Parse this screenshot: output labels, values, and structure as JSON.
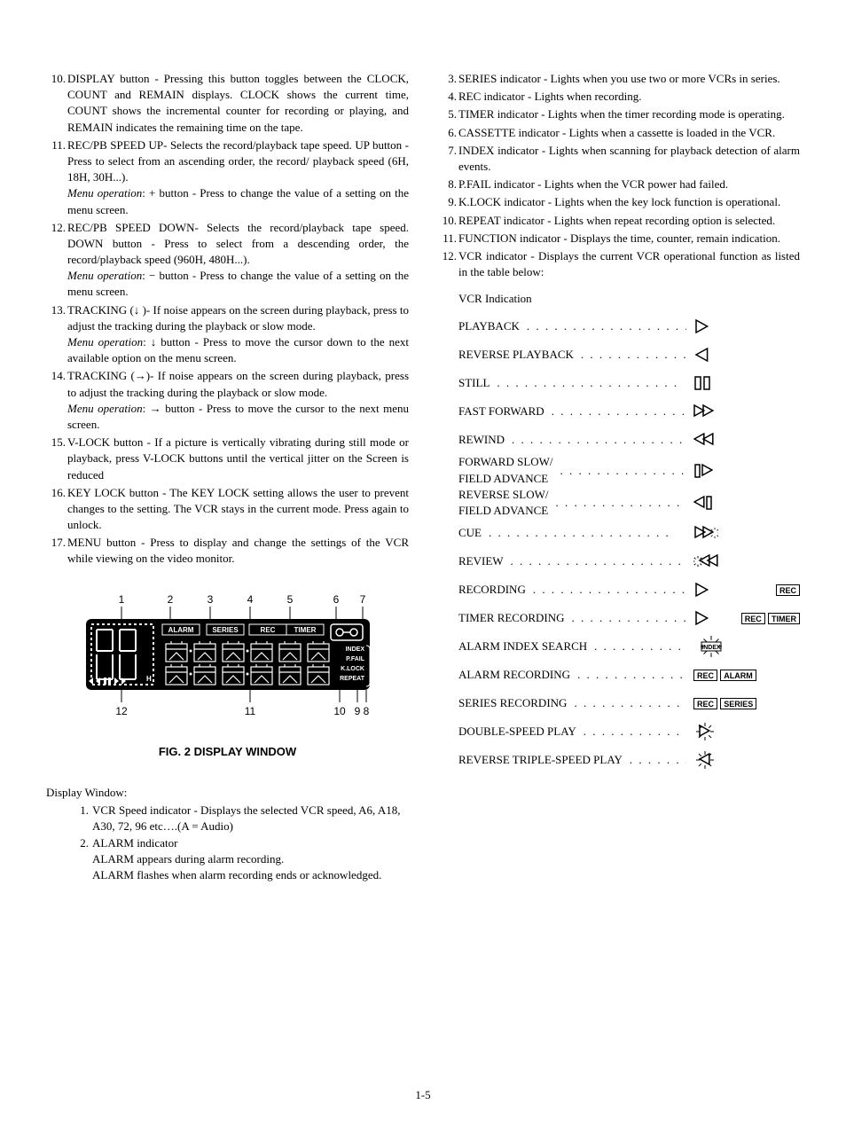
{
  "left": {
    "items": [
      {
        "n": "10.",
        "text": "DISPLAY button - Pressing this button toggles between the CLOCK, COUNT and REMAIN displays. CLOCK shows the current time, COUNT shows the incremental counter for recording or playing, and REMAIN indicates the remaining time on the tape."
      },
      {
        "n": "11.",
        "text": "REC/PB SPEED UP- Selects the record/playback tape speed. UP button - Press to select from an ascending order, the record/ playback speed (6H, 18H, 30H...).",
        "menu": "Menu operation:  + button -  Press to change the value of a setting on the menu screen."
      },
      {
        "n": "12.",
        "text": "REC/PB SPEED DOWN- Selects the record/playback tape speed. DOWN button - Press to select from a descending order, the record/playback speed (960H, 480H...).",
        "menu": "Menu operation:  − button -  Press to change the value of a setting on the menu screen."
      },
      {
        "n": "13.",
        "text": "TRACKING (↓ )- If noise appears on the screen during playback, press to adjust the tracking during the playback or slow mode.",
        "menu": "Menu operation: ↓ button - Press to move the cursor down to the next available option on the menu screen."
      },
      {
        "n": "14.",
        "text": "TRACKING (→)- If noise appears on the screen during playback, press to adjust the tracking during the playback or slow mode.",
        "menu": "Menu operation: → button -  Press to move the cursor to the next menu screen."
      },
      {
        "n": "15.",
        "text": "V-LOCK button - If a picture is vertically vibrating during still mode or playback, press V-LOCK buttons until the vertical jitter on the Screen is reduced"
      },
      {
        "n": "16.",
        "text": "KEY LOCK button - The KEY LOCK setting allows the user to prevent changes to the setting. The VCR stays in the current mode. Press again to unlock."
      },
      {
        "n": "17.",
        "text": "MENU button - Press to display and change the settings of the VCR while viewing on the video monitor."
      }
    ],
    "figure": {
      "caption": "FIG. 2 DISPLAY WINDOW",
      "top_nums": [
        "1",
        "2",
        "3",
        "4",
        "5",
        "6",
        "7"
      ],
      "bottom_nums": [
        "12",
        "11",
        "10",
        "9",
        "8"
      ],
      "idx_labels": [
        "INDEX",
        "P.FAIL",
        "K.LOCK",
        "REPEAT"
      ],
      "top_badges": [
        "ALARM",
        "SERIES",
        "REC",
        "TIMER"
      ]
    },
    "display_window_label": "Display Window:",
    "sub_items": [
      {
        "n": "1.",
        "text": "VCR Speed indicator - Displays the selected VCR speed, A6, A18, A30, 72, 96 etc….(A = Audio)"
      },
      {
        "n": "2.",
        "text": "ALARM indicator",
        "extra": [
          "ALARM appears during alarm recording.",
          "ALARM flashes when alarm recording ends or acknowledged."
        ]
      }
    ]
  },
  "right": {
    "items": [
      {
        "n": "3.",
        "text": "SERIES indicator - Lights when you use two or more VCRs in series."
      },
      {
        "n": "4.",
        "text": "REC indicator - Lights when recording."
      },
      {
        "n": "5.",
        "text": "TIMER indicator - Lights when the timer recording mode is operating."
      },
      {
        "n": "6.",
        "text": "CASSETTE indicator - Lights when a cassette is loaded in the VCR."
      },
      {
        "n": "7.",
        "text": "INDEX indicator - Lights when scanning for playback detection of alarm events."
      },
      {
        "n": "8.",
        "text": "P.FAIL indicator - Lights when the VCR power had failed."
      },
      {
        "n": "9.",
        "text": "K.LOCK indicator -  Lights when the key lock function is operational."
      },
      {
        "n": "10.",
        "text": "REPEAT indicator - Lights when repeat recording option is selected."
      },
      {
        "n": "11.",
        "text": "FUNCTION indicator - Displays the time, counter, remain indication."
      },
      {
        "n": "12.",
        "text": "VCR indicator - Displays the current VCR operational function as listed in the table below:"
      }
    ],
    "vcr_title": "VCR Indication",
    "vcr_rows": [
      {
        "label": "PLAYBACK",
        "icon": "play"
      },
      {
        "label": "REVERSE PLAYBACK",
        "icon": "rplay"
      },
      {
        "label": "STILL",
        "icon": "pause"
      },
      {
        "label": "FAST FORWARD",
        "icon": "ff"
      },
      {
        "label": "REWIND",
        "icon": "rw"
      },
      {
        "label": "FORWARD SLOW/\nFIELD ADVANCE",
        "icon": "fsf"
      },
      {
        "label": "REVERSE SLOW/\nFIELD ADVANCE",
        "icon": "rsf"
      },
      {
        "label": "CUE",
        "icon": "cue"
      },
      {
        "label": "REVIEW",
        "icon": "review"
      },
      {
        "label": "RECORDING",
        "icon": "rec"
      },
      {
        "label": "TIMER RECORDING",
        "icon": "timerrec"
      },
      {
        "label": "ALARM INDEX SEARCH",
        "icon": "idxsearch"
      },
      {
        "label": "ALARM RECORDING",
        "icon": "alarmrec"
      },
      {
        "label": "SERIES RECORDING",
        "icon": "seriesrec"
      },
      {
        "label": "DOUBLE-SPEED PLAY",
        "icon": "dsp"
      },
      {
        "label": "REVERSE TRIPLE-SPEED PLAY",
        "icon": "rtsp"
      }
    ]
  },
  "page_num": "1-5",
  "colors": {
    "fg": "#000000",
    "bg": "#ffffff"
  }
}
